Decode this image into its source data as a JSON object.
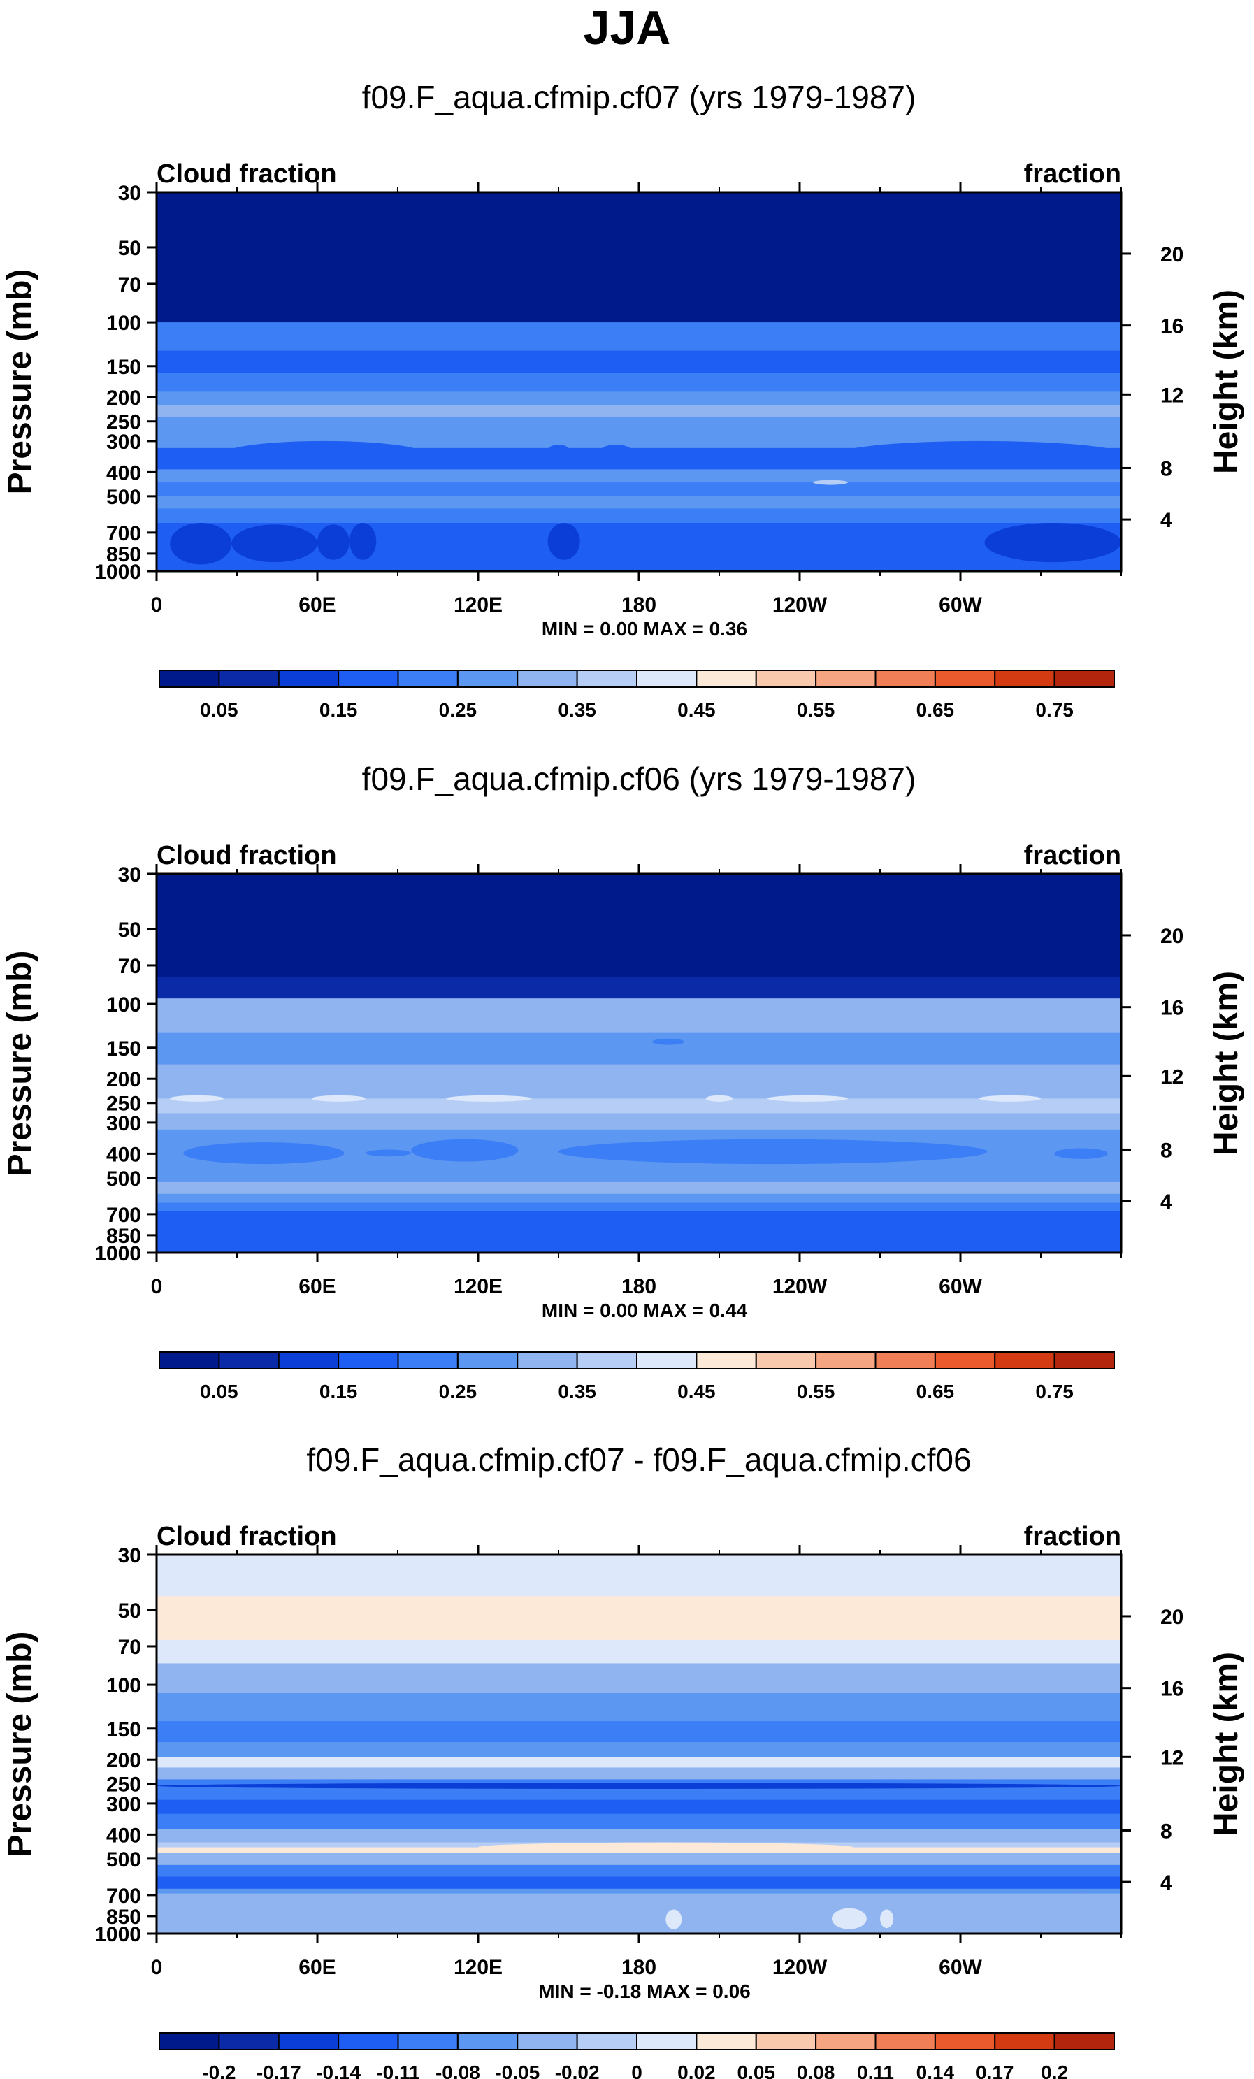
{
  "figure": {
    "title": "JJA"
  },
  "chart_data": [
    {
      "type": "heatmap",
      "title": "f09.F_aqua.cfmip.cf07 (yrs 1979-1987)",
      "left_label": "Cloud fraction",
      "right_label": "fraction",
      "ylabel": "Pressure (mb)",
      "y2label": "Height (km)",
      "x_ticks": [
        "0",
        "60E",
        "120E",
        "180",
        "120W",
        "60W"
      ],
      "x_tick_values": [
        0,
        60,
        120,
        180,
        240,
        300
      ],
      "xlim": [
        0,
        360
      ],
      "y_scale": "log",
      "y_ticks": [
        "30",
        "50",
        "70",
        "100",
        "150",
        "200",
        "250",
        "300",
        "400",
        "500",
        "700",
        "850",
        "1000"
      ],
      "y_tick_values": [
        30,
        50,
        70,
        100,
        150,
        200,
        250,
        300,
        400,
        500,
        700,
        850,
        1000
      ],
      "ylim": [
        1000,
        30
      ],
      "height_ticks": [
        "20",
        "16",
        "12",
        "8",
        "4"
      ],
      "height_tick_pressures": [
        53,
        103,
        195,
        385,
        620
      ],
      "stats": "MIN =   0.00   MAX =   0.36",
      "min": 0.0,
      "max": 0.36,
      "colorbar_labels": [
        "0.05",
        "0.15",
        "0.25",
        "0.35",
        "0.45",
        "0.55",
        "0.65",
        "0.75"
      ],
      "levels": [
        0.05,
        0.1,
        0.15,
        0.2,
        0.25,
        0.3,
        0.35,
        0.4,
        0.45,
        0.5,
        0.55,
        0.6,
        0.65,
        0.7,
        0.75
      ],
      "colors": [
        "#001a8c",
        "#0a2aa8",
        "#0a3ed6",
        "#1f5ef2",
        "#3c7ef5",
        "#5c97f2",
        "#8fb4f0",
        "#b6cef5",
        "#dde9fb",
        "#fde9d8",
        "#f9c9ae",
        "#f5a582",
        "#f07f58",
        "#ea5a2c",
        "#d43b12",
        "#b3250c"
      ],
      "layers": [
        {
          "p": 30,
          "v": 0.02
        },
        {
          "p": 72,
          "v": 0.04
        },
        {
          "p": 100,
          "v": 0.22
        },
        {
          "p": 130,
          "v": 0.18
        },
        {
          "p": 160,
          "v": 0.24
        },
        {
          "p": 190,
          "v": 0.28
        },
        {
          "p": 215,
          "v": 0.32
        },
        {
          "p": 240,
          "v": 0.27
        },
        {
          "p": 270,
          "v": 0.25
        },
        {
          "p": 320,
          "v": 0.19
        },
        {
          "p": 390,
          "v": 0.26
        },
        {
          "p": 440,
          "v": 0.22
        },
        {
          "p": 500,
          "v": 0.25
        },
        {
          "p": 560,
          "v": 0.2
        },
        {
          "p": 640,
          "v": 0.18
        },
        {
          "p": 960,
          "v": 0.17
        },
        {
          "p": 1000,
          "v": 0.15
        }
      ],
      "patches": [
        {
          "lon": [
            5,
            28
          ],
          "p": [
            640,
            940
          ],
          "v": 0.14
        },
        {
          "lon": [
            28,
            60
          ],
          "p": [
            650,
            920
          ],
          "v": 0.14
        },
        {
          "lon": [
            60,
            72
          ],
          "p": [
            650,
            900
          ],
          "v": 0.14
        },
        {
          "lon": [
            72,
            82
          ],
          "p": [
            640,
            900
          ],
          "v": 0.14
        },
        {
          "lon": [
            146,
            158
          ],
          "p": [
            640,
            900
          ],
          "v": 0.14
        },
        {
          "lon": [
            309,
            360
          ],
          "p": [
            640,
            920
          ],
          "v": 0.14
        },
        {
          "lon": [
            25,
            100
          ],
          "p": [
            300,
            380
          ],
          "v": 0.18
        },
        {
          "lon": [
            145,
            155
          ],
          "p": [
            310,
            370
          ],
          "v": 0.18
        },
        {
          "lon": [
            165,
            178
          ],
          "p": [
            310,
            360
          ],
          "v": 0.18
        },
        {
          "lon": [
            255,
            360
          ],
          "p": [
            300,
            380
          ],
          "v": 0.18
        },
        {
          "lon": [
            245,
            258
          ],
          "p": [
            430,
            450
          ],
          "v": 0.37
        }
      ]
    },
    {
      "type": "heatmap",
      "title": "f09.F_aqua.cfmip.cf06 (yrs 1979-1987)",
      "left_label": "Cloud fraction",
      "right_label": "fraction",
      "ylabel": "Pressure (mb)",
      "y2label": "Height (km)",
      "x_ticks": [
        "0",
        "60E",
        "120E",
        "180",
        "120W",
        "60W"
      ],
      "x_tick_values": [
        0,
        60,
        120,
        180,
        240,
        300
      ],
      "xlim": [
        0,
        360
      ],
      "y_scale": "log",
      "y_ticks": [
        "30",
        "50",
        "70",
        "100",
        "150",
        "200",
        "250",
        "300",
        "400",
        "500",
        "700",
        "850",
        "1000"
      ],
      "y_tick_values": [
        30,
        50,
        70,
        100,
        150,
        200,
        250,
        300,
        400,
        500,
        700,
        850,
        1000
      ],
      "ylim": [
        1000,
        30
      ],
      "height_ticks": [
        "20",
        "16",
        "12",
        "8",
        "4"
      ],
      "height_tick_pressures": [
        53,
        103,
        195,
        385,
        620
      ],
      "stats": "MIN =   0.00   MAX =   0.44",
      "min": 0.0,
      "max": 0.44,
      "colorbar_labels": [
        "0.05",
        "0.15",
        "0.25",
        "0.35",
        "0.45",
        "0.55",
        "0.65",
        "0.75"
      ],
      "levels": [
        0.05,
        0.1,
        0.15,
        0.2,
        0.25,
        0.3,
        0.35,
        0.4,
        0.45,
        0.5,
        0.55,
        0.6,
        0.65,
        0.7,
        0.75
      ],
      "colors": [
        "#001a8c",
        "#0a2aa8",
        "#0a3ed6",
        "#1f5ef2",
        "#3c7ef5",
        "#5c97f2",
        "#8fb4f0",
        "#b6cef5",
        "#dde9fb",
        "#fde9d8",
        "#f9c9ae",
        "#f5a582",
        "#f07f58",
        "#ea5a2c",
        "#d43b12",
        "#b3250c"
      ],
      "layers": [
        {
          "p": 30,
          "v": 0.02
        },
        {
          "p": 78,
          "v": 0.05
        },
        {
          "p": 95,
          "v": 0.32
        },
        {
          "p": 130,
          "v": 0.28
        },
        {
          "p": 175,
          "v": 0.3
        },
        {
          "p": 215,
          "v": 0.33
        },
        {
          "p": 240,
          "v": 0.37
        },
        {
          "p": 275,
          "v": 0.33
        },
        {
          "p": 320,
          "v": 0.28
        },
        {
          "p": 360,
          "v": 0.26
        },
        {
          "p": 460,
          "v": 0.26
        },
        {
          "p": 520,
          "v": 0.3
        },
        {
          "p": 580,
          "v": 0.28
        },
        {
          "p": 630,
          "v": 0.23
        },
        {
          "p": 680,
          "v": 0.19
        },
        {
          "p": 1000,
          "v": 0.18
        }
      ],
      "patches": [
        {
          "lon": [
            10,
            70
          ],
          "p": [
            360,
            440
          ],
          "v": 0.22
        },
        {
          "lon": [
            78,
            95
          ],
          "p": [
            385,
            410
          ],
          "v": 0.22
        },
        {
          "lon": [
            95,
            135
          ],
          "p": [
            350,
            430
          ],
          "v": 0.22
        },
        {
          "lon": [
            150,
            310
          ],
          "p": [
            350,
            440
          ],
          "v": 0.22
        },
        {
          "lon": [
            335,
            355
          ],
          "p": [
            380,
            420
          ],
          "v": 0.22
        },
        {
          "lon": [
            185,
            197
          ],
          "p": [
            138,
            146
          ],
          "v": 0.24
        },
        {
          "lon": [
            5,
            25
          ],
          "p": [
            233,
            247
          ],
          "v": 0.42
        },
        {
          "lon": [
            58,
            78
          ],
          "p": [
            233,
            247
          ],
          "v": 0.42
        },
        {
          "lon": [
            108,
            140
          ],
          "p": [
            233,
            247
          ],
          "v": 0.42
        },
        {
          "lon": [
            205,
            215
          ],
          "p": [
            233,
            247
          ],
          "v": 0.42
        },
        {
          "lon": [
            228,
            258
          ],
          "p": [
            233,
            247
          ],
          "v": 0.42
        },
        {
          "lon": [
            307,
            330
          ],
          "p": [
            233,
            247
          ],
          "v": 0.42
        }
      ]
    },
    {
      "type": "heatmap",
      "title": "f09.F_aqua.cfmip.cf07 - f09.F_aqua.cfmip.cf06",
      "left_label": "Cloud fraction",
      "right_label": "fraction",
      "ylabel": "Pressure (mb)",
      "y2label": "Height (km)",
      "x_ticks": [
        "0",
        "60E",
        "120E",
        "180",
        "120W",
        "60W"
      ],
      "x_tick_values": [
        0,
        60,
        120,
        180,
        240,
        300
      ],
      "xlim": [
        0,
        360
      ],
      "y_scale": "log",
      "y_ticks": [
        "30",
        "50",
        "70",
        "100",
        "150",
        "200",
        "250",
        "300",
        "400",
        "500",
        "700",
        "850",
        "1000"
      ],
      "y_tick_values": [
        30,
        50,
        70,
        100,
        150,
        200,
        250,
        300,
        400,
        500,
        700,
        850,
        1000
      ],
      "ylim": [
        1000,
        30
      ],
      "height_ticks": [
        "20",
        "16",
        "12",
        "8",
        "4"
      ],
      "height_tick_pressures": [
        53,
        103,
        195,
        385,
        620
      ],
      "stats": "MIN =  -0.18   MAX =   0.06",
      "min": -0.18,
      "max": 0.06,
      "colorbar_labels": [
        "-0.2",
        "-0.17",
        "-0.14",
        "-0.11",
        "-0.08",
        "-0.05",
        "-0.02",
        "0",
        "0.02",
        "0.05",
        "0.08",
        "0.11",
        "0.14",
        "0.17",
        "0.2"
      ],
      "levels": [
        -0.2,
        -0.17,
        -0.14,
        -0.11,
        -0.08,
        -0.05,
        -0.02,
        0,
        0.02,
        0.05,
        0.08,
        0.11,
        0.14,
        0.17,
        0.2
      ],
      "colors": [
        "#001a8c",
        "#0a2aa8",
        "#0a3ed6",
        "#1f5ef2",
        "#3c7ef5",
        "#5c97f2",
        "#8fb4f0",
        "#b6cef5",
        "#dde9fb",
        "#fde9d8",
        "#f9c9ae",
        "#f5a582",
        "#f07f58",
        "#ea5a2c",
        "#d43b12",
        "#b3250c"
      ],
      "layers": [
        {
          "p": 30,
          "v": 0.01
        },
        {
          "p": 44,
          "v": 0.025
        },
        {
          "p": 50,
          "v": 0.035
        },
        {
          "p": 66,
          "v": 0.01
        },
        {
          "p": 82,
          "v": -0.03
        },
        {
          "p": 108,
          "v": -0.06
        },
        {
          "p": 140,
          "v": -0.09
        },
        {
          "p": 170,
          "v": -0.06
        },
        {
          "p": 195,
          "v": 0.005
        },
        {
          "p": 215,
          "v": -0.04
        },
        {
          "p": 240,
          "v": -0.1
        },
        {
          "p": 290,
          "v": -0.13
        },
        {
          "p": 330,
          "v": -0.09
        },
        {
          "p": 380,
          "v": -0.05
        },
        {
          "p": 430,
          "v": -0.01
        },
        {
          "p": 450,
          "v": 0.03
        },
        {
          "p": 475,
          "v": -0.03
        },
        {
          "p": 530,
          "v": -0.09
        },
        {
          "p": 590,
          "v": -0.12
        },
        {
          "p": 660,
          "v": -0.06
        },
        {
          "p": 690,
          "v": -0.03
        },
        {
          "p": 1000,
          "v": -0.01
        }
      ],
      "patches": [
        {
          "lon": [
            120,
            260
          ],
          "p": [
            430,
            470
          ],
          "v": 0.035
        },
        {
          "lon": [
            0,
            360
          ],
          "p": [
            248,
            262
          ],
          "v": -0.15
        },
        {
          "lon": [
            190,
            196
          ],
          "p": [
            800,
            960
          ],
          "v": 0.01
        },
        {
          "lon": [
            252,
            265
          ],
          "p": [
            790,
            960
          ],
          "v": 0.01
        },
        {
          "lon": [
            270,
            275
          ],
          "p": [
            800,
            950
          ],
          "v": 0.01
        },
        {
          "lon": [
            140,
            155
          ],
          "p": [
            690,
            890
          ],
          "v": -0.03
        },
        {
          "lon": [
            330,
            360
          ],
          "p": [
            690,
            880
          ],
          "v": -0.03
        },
        {
          "lon": [
            33,
            37
          ],
          "p": [
            690,
            950
          ],
          "v": -0.03
        },
        {
          "lon": [
            70,
            80
          ],
          "p": [
            690,
            800
          ],
          "v": -0.03
        },
        {
          "lon": [
            0,
            10
          ],
          "p": [
            690,
            850
          ],
          "v": -0.03
        }
      ]
    }
  ]
}
